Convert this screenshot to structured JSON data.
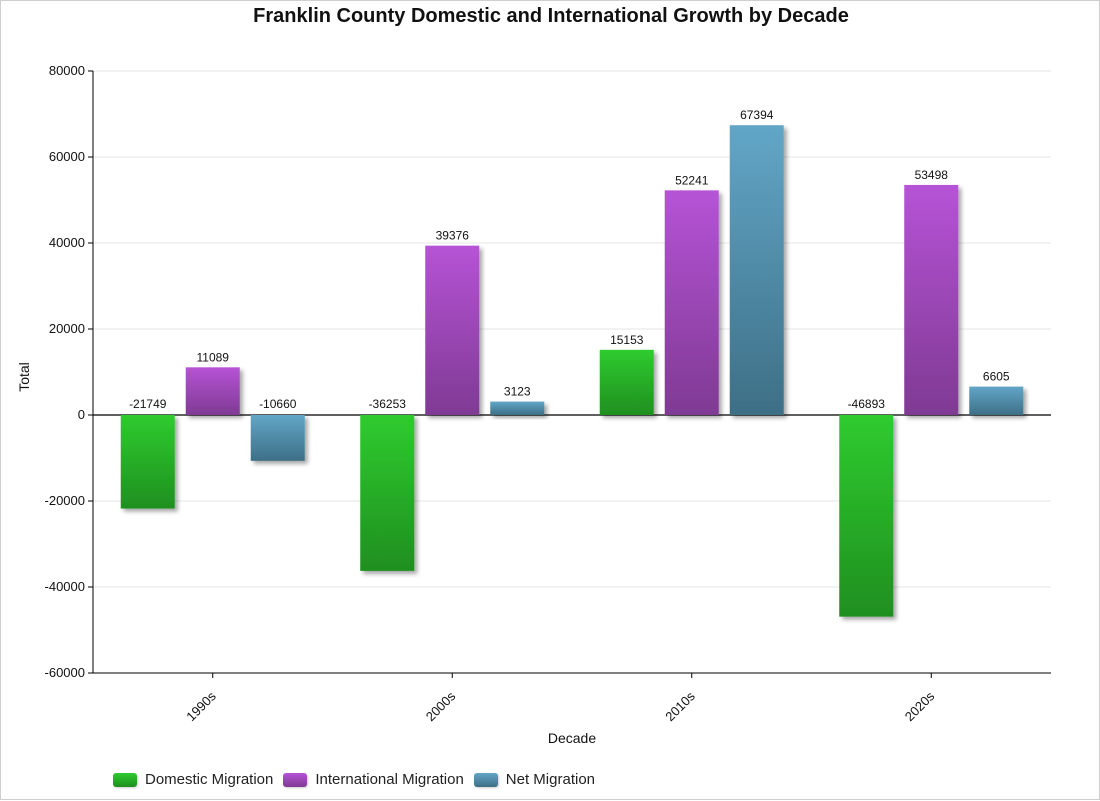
{
  "chart_data": {
    "type": "bar",
    "title": "Franklin County Domestic and International Growth by Decade",
    "xlabel": "Decade",
    "ylabel": "Total",
    "ylim": [
      -60000,
      80000
    ],
    "categories": [
      "1990s",
      "2000s",
      "2010s",
      "2020s"
    ],
    "series": [
      {
        "name": "Domestic Migration",
        "values": [
          -21749,
          -36253,
          15153,
          -46893
        ],
        "color": "#2fcb2f",
        "color_dark": "#1f8f1f"
      },
      {
        "name": "International Migration",
        "values": [
          11089,
          39376,
          52241,
          53498
        ],
        "color": "#b653d6",
        "color_dark": "#7f3a93"
      },
      {
        "name": "Net Migration",
        "values": [
          -10660,
          3123,
          67394,
          6605
        ],
        "color": "#62a6c7",
        "color_dark": "#3d6f86"
      }
    ],
    "yticks": [
      -60000,
      -40000,
      -20000,
      0,
      20000,
      40000,
      60000,
      80000
    ],
    "grid": true,
    "legend_position": "bottom-left"
  }
}
